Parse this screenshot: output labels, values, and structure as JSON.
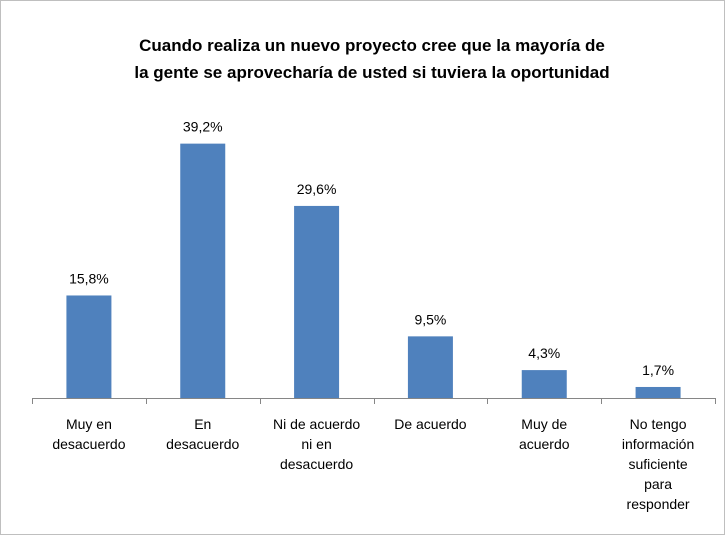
{
  "chart_data": {
    "type": "bar",
    "title": [
      "Cuando realiza un nuevo proyecto cree que la mayoría de",
      "la gente se aprovecharía de usted si tuviera la oportunidad"
    ],
    "categories": [
      "Muy en\ndesacuerdo",
      "En\ndesacuerdo",
      "Ni de acuerdo\nni en\ndesacuerdo",
      "De acuerdo",
      "Muy de\nacuerdo",
      "No tengo\ninformación\nsuficiente\npara\nresponder"
    ],
    "values": [
      15.8,
      39.2,
      29.6,
      9.5,
      4.3,
      1.7
    ],
    "value_labels": [
      "15,8%",
      "39,2%",
      "29,6%",
      "9,5%",
      "4,3%",
      "1,7%"
    ],
    "color": "#4f81bd",
    "ylim": [
      0,
      45
    ]
  }
}
